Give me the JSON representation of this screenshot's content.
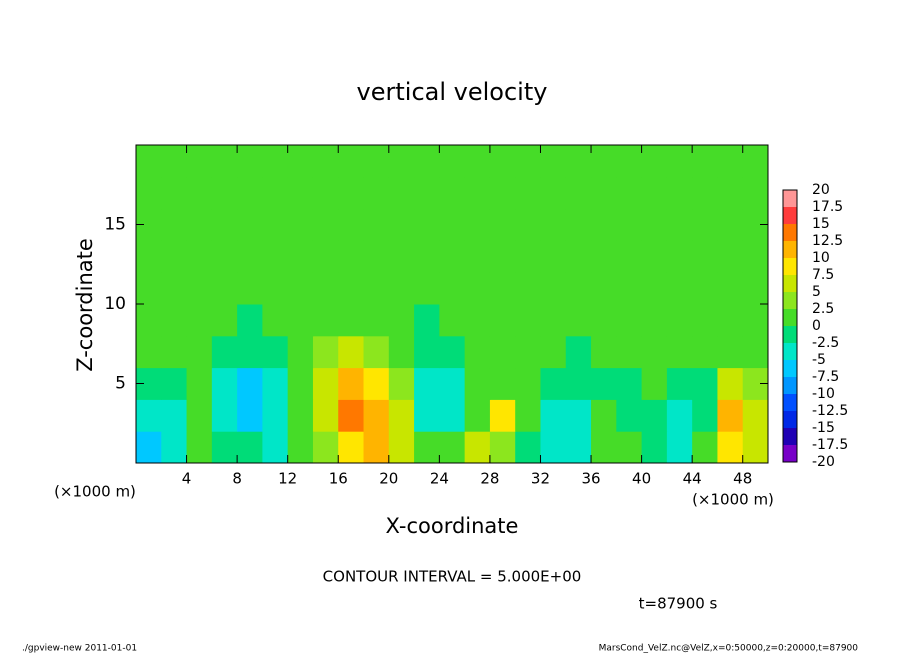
{
  "chart_data": {
    "type": "heatmap",
    "title": "vertical velocity",
    "x_label": "X-coordinate",
    "y_label": "Z-coordinate",
    "x_unit_label": "(×1000 m)",
    "y_unit_label": "(×1000 m)",
    "annotation": "CONTOUR INTERVAL = 5.000E+00",
    "time_label": "t=87900 s",
    "footer_left": "./gpview-new  2011-01-01",
    "footer_right": "MarsCond_VelZ.nc@VelZ,x=0:50000,z=0:20000,t=87900",
    "xlim": [
      0,
      50
    ],
    "ylim": [
      0,
      20
    ],
    "xticks": [
      4,
      8,
      12,
      16,
      20,
      24,
      28,
      32,
      36,
      40,
      44,
      48
    ],
    "yticks": [
      5,
      10,
      15
    ],
    "x": [
      1,
      3,
      5,
      7,
      9,
      11,
      13,
      15,
      17,
      19,
      21,
      23,
      25,
      27,
      29,
      31,
      33,
      35,
      37,
      39,
      41,
      43,
      45,
      47,
      49
    ],
    "y": [
      1,
      3,
      5,
      7,
      9,
      11,
      13,
      15,
      17,
      19
    ],
    "values": [
      [
        -6,
        -4,
        1,
        -1,
        -2,
        -3,
        0,
        3,
        8,
        10,
        6,
        1,
        2,
        7,
        3,
        -2,
        -4,
        -3,
        0,
        2,
        -1,
        -3,
        2,
        9,
        6
      ],
      [
        -5,
        -3,
        1,
        -5,
        -7,
        -4,
        1,
        6,
        14,
        12,
        6,
        -5,
        -4,
        2,
        8,
        2,
        -3,
        -4,
        0,
        -1,
        -2,
        -4,
        -2,
        11,
        5
      ],
      [
        -2,
        -1,
        0,
        -3,
        -6,
        -3,
        1,
        5,
        10,
        8,
        4,
        -5,
        -3,
        0,
        2,
        1,
        -2,
        -2,
        -1,
        -1,
        0,
        -2,
        -1,
        7,
        3
      ],
      [
        0,
        1,
        0,
        -1,
        -2,
        -1,
        1,
        3,
        5,
        4,
        2,
        -2,
        -1,
        0,
        1,
        0,
        0,
        -1,
        0,
        0,
        1,
        0,
        0,
        2,
        1
      ],
      [
        1,
        1,
        0,
        0,
        -1,
        0,
        1,
        2,
        2,
        2,
        1,
        -1,
        0,
        1,
        1,
        0,
        0,
        1,
        0,
        0,
        1,
        1,
        0,
        1,
        1
      ],
      [
        1,
        0,
        1,
        1,
        0,
        0,
        1,
        1,
        1,
        1,
        0,
        0,
        1,
        1,
        1,
        1,
        0,
        0,
        1,
        1,
        0,
        0,
        1,
        1,
        0
      ],
      [
        0,
        1,
        1,
        0,
        0,
        1,
        1,
        0,
        1,
        1,
        1,
        0,
        0,
        1,
        1,
        1,
        0,
        1,
        1,
        0,
        1,
        1,
        0,
        1,
        1
      ],
      [
        1,
        1,
        0,
        1,
        1,
        1,
        0,
        1,
        1,
        1,
        1,
        1,
        0,
        1,
        1,
        1,
        1,
        1,
        0,
        0,
        1,
        1,
        1,
        0,
        1
      ],
      [
        1,
        0,
        1,
        1,
        0,
        1,
        1,
        1,
        0,
        1,
        1,
        1,
        1,
        0,
        1,
        1,
        0,
        1,
        1,
        1,
        0,
        1,
        1,
        1,
        1
      ],
      [
        1,
        1,
        1,
        1,
        1,
        1,
        1,
        1,
        1,
        1,
        1,
        1,
        1,
        1,
        1,
        1,
        1,
        1,
        1,
        1,
        1,
        1,
        1,
        1,
        1
      ]
    ],
    "levels": [
      -20,
      -17.5,
      -15,
      -12.5,
      -10,
      -7.5,
      -5,
      -2.5,
      0,
      2.5,
      5,
      7.5,
      10,
      12.5,
      15,
      17.5,
      20
    ],
    "colors": [
      "#7800c8",
      "#2000b4",
      "#0028e6",
      "#0050ff",
      "#0096ff",
      "#00c8ff",
      "#00e6c8",
      "#00dc78",
      "#46dc28",
      "#8ce61e",
      "#c8e600",
      "#ffe600",
      "#ffb400",
      "#ff7800",
      "#ff3c3c",
      "#ff9696"
    ]
  }
}
